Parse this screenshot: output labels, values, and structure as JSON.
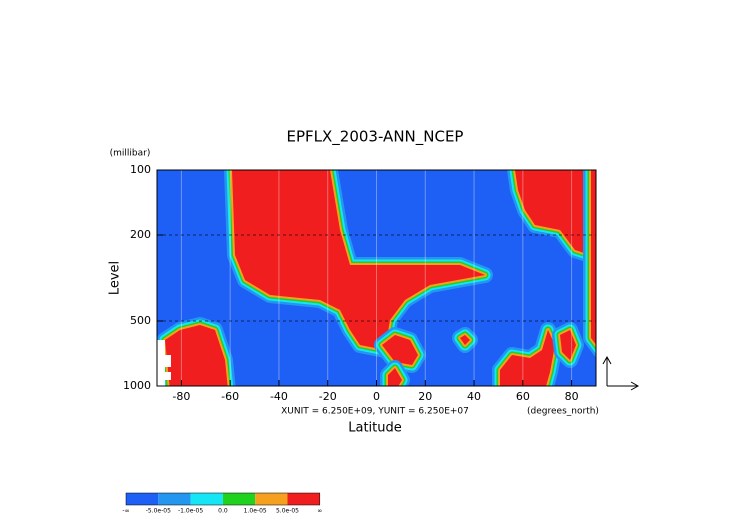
{
  "chart_data": {
    "type": "contour",
    "title": "EPFLX_2003-ANN_NCEP",
    "x_label": "Latitude",
    "y_label": "Level",
    "y_unit": "(millibar)",
    "x_unit": "(degrees_north)",
    "subtitle": "XUNIT = 6.250E+09, YUNIT = 6.250E+07",
    "xlim": [
      -90,
      90
    ],
    "xticks": [
      -80,
      -60,
      -40,
      -20,
      0,
      20,
      40,
      60,
      80
    ],
    "ylim": [
      1000,
      100
    ],
    "yticks": [
      100,
      200,
      500,
      1000
    ],
    "y_log": true,
    "grid": true,
    "colorbar": {
      "colors": [
        "#1e5ff5",
        "#2396f0",
        "#14e6f5",
        "#1ed21e",
        "#f5a01e",
        "#f01e1e"
      ],
      "labels": [
        "-∞",
        "-5.0e-05",
        "-1.0e-05",
        "0.0",
        "1.0e-05",
        "5.0e-05",
        "∞"
      ]
    }
  }
}
